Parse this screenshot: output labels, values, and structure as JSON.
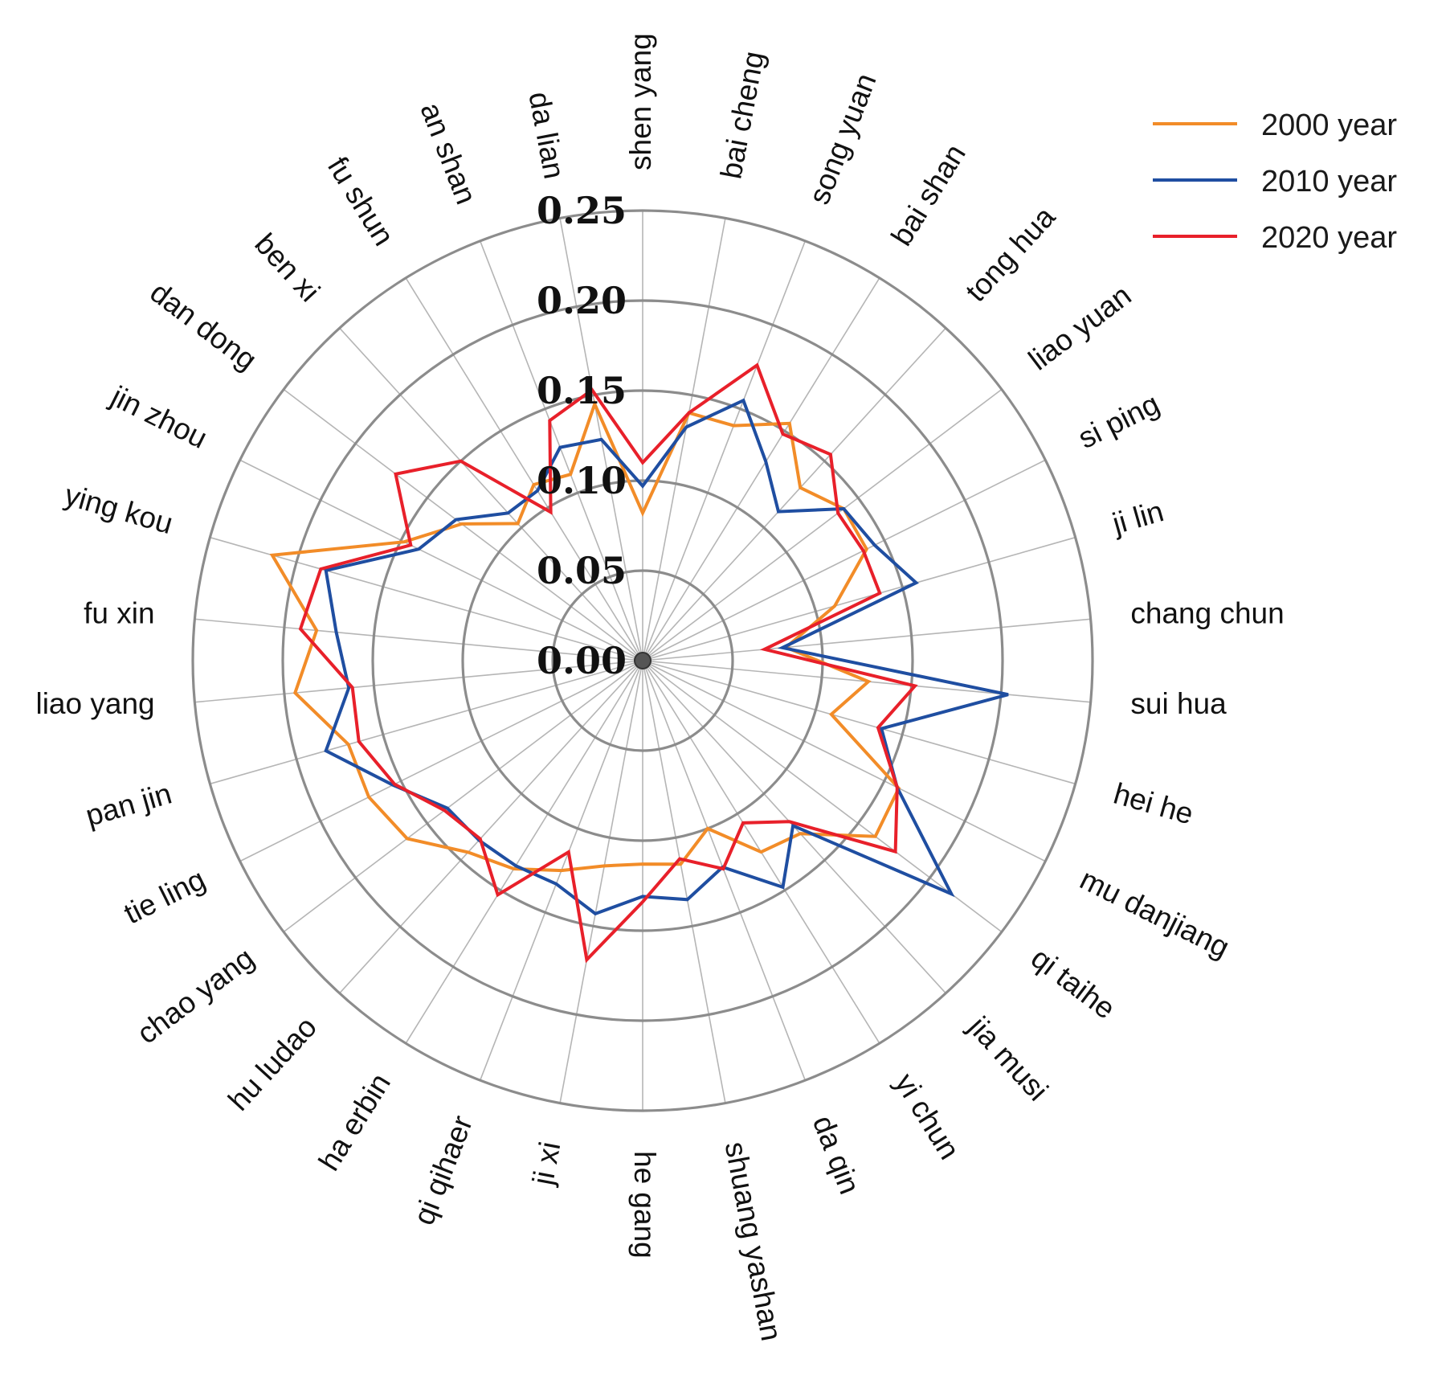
{
  "chart_data": {
    "type": "radar",
    "title": "",
    "rmax": 0.25,
    "ticks": [
      "0.00",
      "0.05",
      "0.10",
      "0.15",
      "0.20",
      "0.25"
    ],
    "tick_values": [
      0,
      0.05,
      0.1,
      0.15,
      0.2,
      0.25
    ],
    "categories": [
      "shen yang",
      "bai cheng",
      "song yuan",
      "bai shan",
      "tong hua",
      "liao yuan",
      "si ping",
      "ji lin",
      "chang chun",
      "sui hua",
      "hei he",
      "mu danjiang",
      "qi taihe",
      "jia musi",
      "yi chun",
      "da qin",
      "shuang yashan",
      "he gang",
      "ji xi",
      "qi qihaer",
      "ha erbin",
      "hu ludao",
      "chao yang",
      "tie ling",
      "pan jin",
      "liao yang",
      "fu xin",
      "ying kou",
      "jin zhou",
      "dan dong",
      "ben xi",
      "fu shun",
      "an shan",
      "da lian"
    ],
    "series": [
      {
        "name": "2000 year",
        "color": "#f28c28",
        "values": [
          0.082,
          0.14,
          0.14,
          0.155,
          0.13,
          0.14,
          0.139,
          0.111,
          0.08,
          0.126,
          0.109,
          0.159,
          0.162,
          0.13,
          0.125,
          0.1,
          0.115,
          0.113,
          0.116,
          0.125,
          0.136,
          0.144,
          0.164,
          0.17,
          0.17,
          0.194,
          0.182,
          0.214,
          0.148,
          0.126,
          0.103,
          0.115,
          0.111,
          0.145
        ]
      },
      {
        "name": "2010 year",
        "color": "#1f4ea1",
        "values": [
          0.097,
          0.132,
          0.155,
          0.13,
          0.112,
          0.14,
          0.144,
          0.158,
          0.078,
          0.204,
          0.138,
          0.158,
          0.215,
          0.124,
          0.148,
          0.123,
          0.135,
          0.131,
          0.143,
          0.133,
          0.134,
          0.135,
          0.136,
          0.155,
          0.183,
          0.164,
          0.171,
          0.183,
          0.139,
          0.13,
          0.111,
          0.111,
          0.127,
          0.125
        ]
      },
      {
        "name": "2020 year",
        "color": "#e8202a",
        "values": [
          0.11,
          0.14,
          0.176,
          0.148,
          0.155,
          0.136,
          0.137,
          0.137,
          0.068,
          0.152,
          0.136,
          0.158,
          0.176,
          0.121,
          0.106,
          0.124,
          0.112,
          0.134,
          0.169,
          0.114,
          0.153,
          0.134,
          0.138,
          0.154,
          0.164,
          0.162,
          0.191,
          0.186,
          0.144,
          0.172,
          0.15,
          0.097,
          0.143,
          0.153
        ]
      }
    ],
    "legend_position": "top-right",
    "grid": true
  }
}
